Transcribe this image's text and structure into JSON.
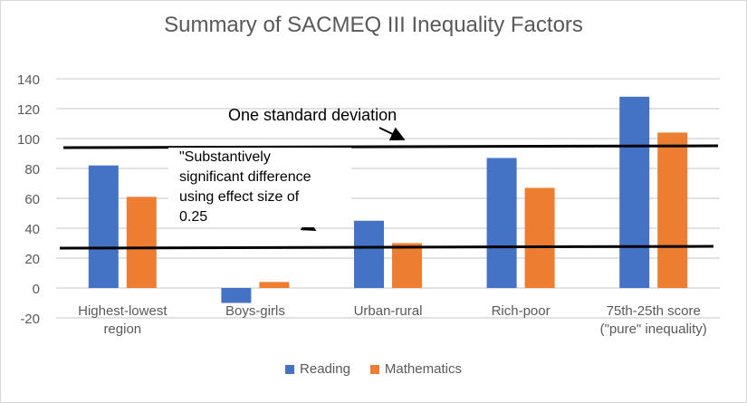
{
  "chart_data": {
    "type": "bar",
    "title": "Summary of SACMEQ III Inequality Factors",
    "xlabel": "",
    "ylabel": "",
    "categories": [
      "Highest-lowest region",
      "Boys-girls",
      "Urban-rural",
      "Rich-poor",
      "75th-25th score (\"pure\" inequality)"
    ],
    "category_lines": [
      [
        "Highest-lowest",
        "region"
      ],
      [
        "Boys-girls"
      ],
      [
        "Urban-rural"
      ],
      [
        "Rich-poor"
      ],
      [
        "75th-25th score",
        "(\"pure\" inequality)"
      ]
    ],
    "series": [
      {
        "name": "Reading",
        "color": "#4472c4",
        "values": [
          82,
          -10,
          45,
          87,
          128
        ]
      },
      {
        "name": "Mathematics",
        "color": "#ed7d31",
        "values": [
          61,
          4,
          30,
          67,
          104
        ]
      }
    ],
    "ylim": [
      -20,
      140
    ],
    "yticks": [
      -20,
      0,
      20,
      40,
      60,
      80,
      100,
      120,
      140
    ],
    "grid": true,
    "legend_position": "bottom",
    "reference_lines": [
      {
        "label": "One standard deviation",
        "value": 94
      },
      {
        "label": "\"Substantively significant difference using effect size of 0.25",
        "value": 27
      }
    ]
  },
  "annotations": {
    "sd_label": "One standard deviation",
    "effect_lines": [
      "\"Substantively",
      "significant difference",
      "using effect size of",
      "0.25"
    ]
  },
  "legend": {
    "reading": "Reading",
    "mathematics": "Mathematics"
  }
}
